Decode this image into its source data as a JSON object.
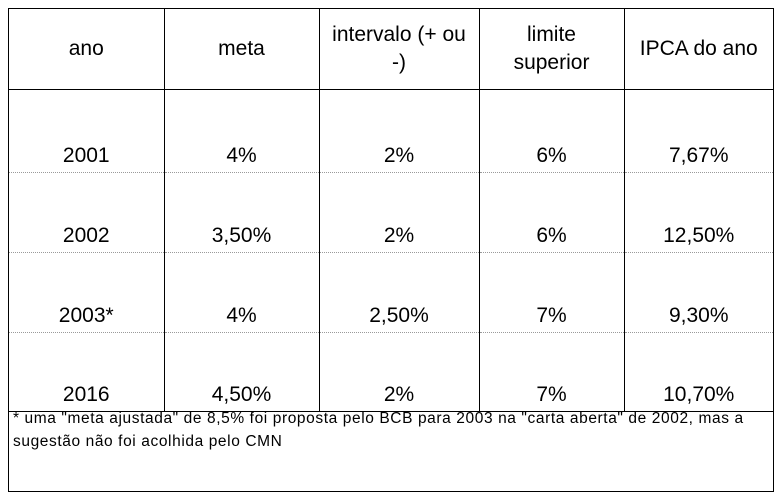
{
  "table": {
    "headers": [
      "ano",
      "meta",
      "intervalo (+ ou -)",
      "limite superior",
      "IPCA do ano"
    ],
    "rows": [
      [
        "2001",
        "4%",
        "2%",
        "6%",
        "7,67%"
      ],
      [
        "2002",
        "3,50%",
        "2%",
        "6%",
        "12,50%"
      ],
      [
        "2003*",
        "4%",
        "2,50%",
        "7%",
        "9,30%"
      ],
      [
        "2016",
        "4,50%",
        "2%",
        "7%",
        "10,70%"
      ]
    ]
  },
  "footnote": "* uma \"meta ajustada\" de 8,5% foi proposta pelo BCB para 2003 na \"carta aberta\" de 2002, mas a sugestão não foi acolhida pelo CMN"
}
